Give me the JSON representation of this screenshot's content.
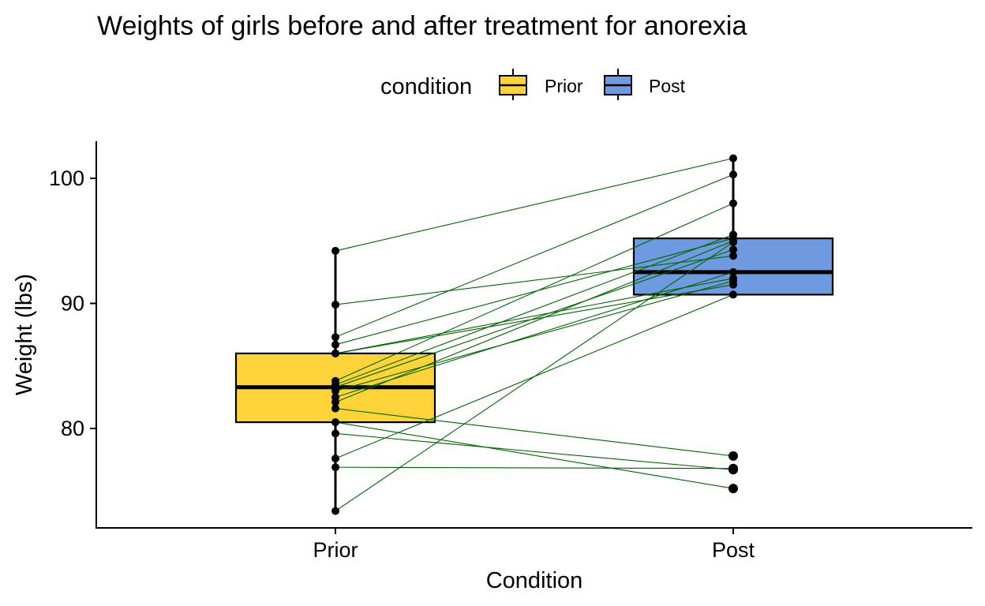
{
  "chart_data": {
    "type": "box",
    "title": "Weights of girls before and after treatment for anorexia",
    "xlabel": "Condition",
    "ylabel": "Weight (lbs)",
    "categories": [
      "Prior",
      "Post"
    ],
    "ylim": [
      72.4,
      102.8
    ],
    "yticks": [
      80,
      90,
      100
    ],
    "grid": false,
    "legend": {
      "title": "condition",
      "position": "top",
      "entries": [
        {
          "label": "Prior",
          "color": "#FFD43B"
        },
        {
          "label": "Post",
          "color": "#6F9AE0"
        }
      ]
    },
    "boxes": [
      {
        "category": "Prior",
        "whisker_low": 73.4,
        "q1": 80.5,
        "median": 83.3,
        "q3": 86.0,
        "whisker_high": 94.2,
        "fill": "#FFD43B"
      },
      {
        "category": "Post",
        "whisker_low": 90.7,
        "q1": 90.7,
        "median": 92.5,
        "q3": 95.2,
        "whisker_high": 101.6,
        "fill": "#6F9AE0"
      }
    ],
    "outliers_post": [
      77.8,
      76.8,
      76.7,
      75.2
    ],
    "pairs": [
      {
        "prior": 94.2,
        "post": 101.6
      },
      {
        "prior": 89.9,
        "post": 93.8
      },
      {
        "prior": 87.3,
        "post": 100.3
      },
      {
        "prior": 86.7,
        "post": 95.2
      },
      {
        "prior": 86.0,
        "post": 91.5
      },
      {
        "prior": 86.0,
        "post": 92.0
      },
      {
        "prior": 83.8,
        "post": 98.0
      },
      {
        "prior": 83.5,
        "post": 95.5
      },
      {
        "prior": 83.3,
        "post": 94.3
      },
      {
        "prior": 83.0,
        "post": 91.8
      },
      {
        "prior": 82.5,
        "post": 92.5
      },
      {
        "prior": 82.1,
        "post": 95.0
      },
      {
        "prior": 81.6,
        "post": 77.8
      },
      {
        "prior": 80.5,
        "post": 75.2
      },
      {
        "prior": 79.6,
        "post": 76.7
      },
      {
        "prior": 77.6,
        "post": 90.7
      },
      {
        "prior": 76.9,
        "post": 76.8
      },
      {
        "prior": 73.4,
        "post": 94.9
      }
    ],
    "colors": {
      "line": "#006400",
      "point": "#000000",
      "prior": "#FFD43B",
      "post": "#6F9AE0"
    }
  }
}
